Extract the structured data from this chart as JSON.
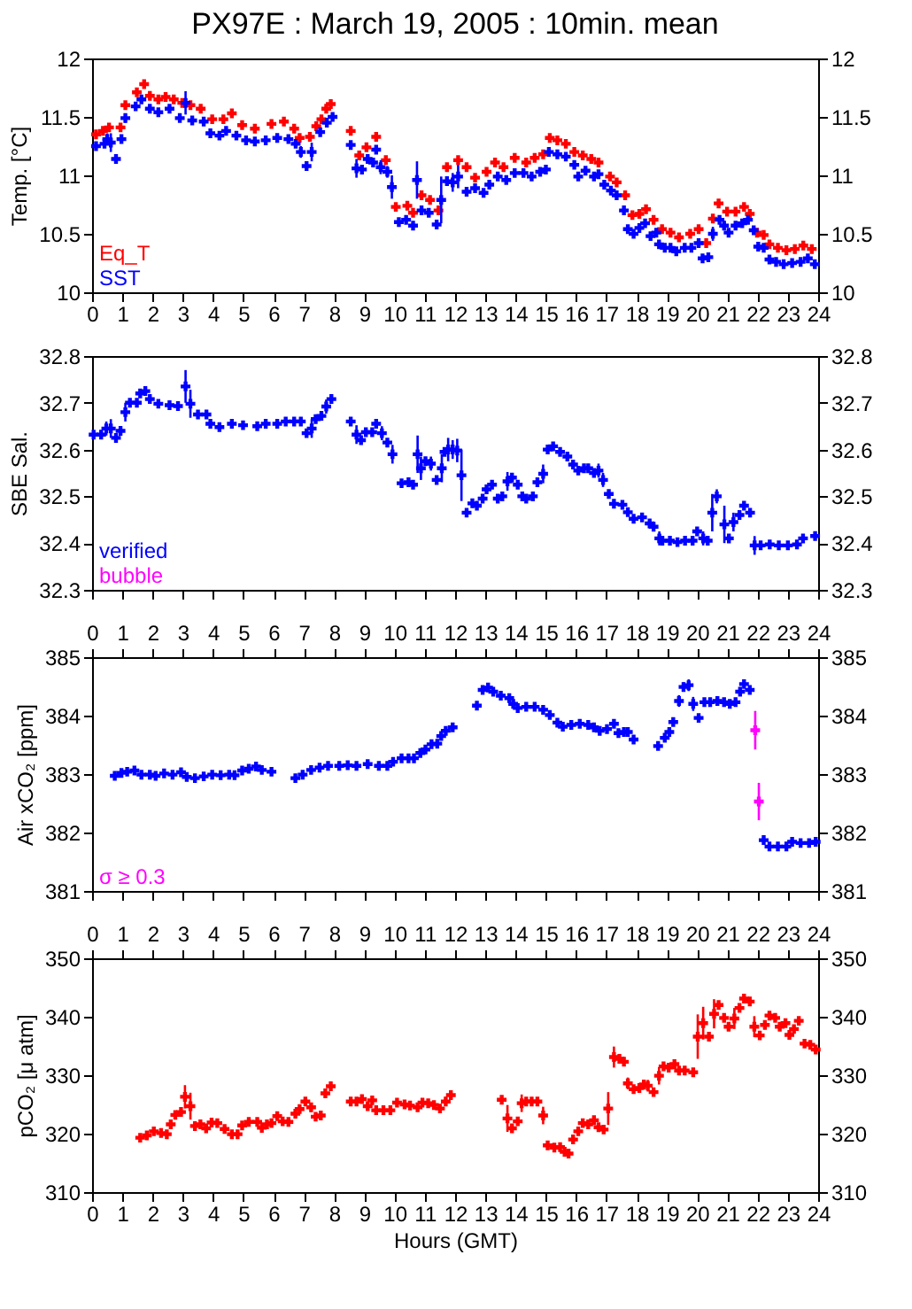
{
  "chart_data": [
    {
      "type": "scatter",
      "title": "PX97E : March 19, 2005 : 10min. mean",
      "ylabel": "Temp. [°C]",
      "marker": "cross",
      "legend": "bottom left",
      "xlim": [
        0,
        24
      ],
      "xticks": [
        0,
        1,
        2,
        3,
        4,
        5,
        6,
        7,
        8,
        9,
        10,
        11,
        12,
        13,
        14,
        15,
        16,
        17,
        18,
        19,
        20,
        21,
        22,
        23,
        24
      ],
      "ylim": [
        10,
        12
      ],
      "yticks": [
        10,
        10.5,
        11,
        11.5,
        12
      ],
      "y2lim": [
        10,
        12
      ],
      "y2ticks": [
        10,
        10.5,
        11,
        11.5,
        12
      ],
      "series": [
        {
          "name": "Eq_T",
          "color": "#ff0000",
          "x": [
            0.13,
            0.36,
            0.56,
            0.94,
            1.1,
            1.48,
            1.72,
            1.91,
            2.19,
            2.43,
            2.7,
            2.98,
            3.25,
            3.59,
            3.97,
            4.34,
            4.62,
            4.96,
            5.38,
            5.93,
            6.34,
            6.68,
            6.86,
            7.2,
            7.41,
            7.58,
            7.74,
            7.89,
            8.55,
            8.83,
            9.07,
            9.39,
            9.71,
            10.04,
            10.42,
            10.61,
            10.89,
            11.17,
            11.45,
            11.73,
            12.1,
            12.38,
            12.66,
            13.04,
            13.32,
            13.6,
            13.97,
            14.35,
            14.63,
            14.91,
            15.13,
            15.38,
            15.66,
            15.94,
            16.22,
            16.5,
            16.74,
            17.12,
            17.34,
            17.62,
            17.86,
            18.09,
            18.31,
            18.56,
            18.84,
            19.12,
            19.4,
            19.77,
            20.05,
            20.3,
            20.52,
            20.71,
            20.99,
            21.27,
            21.55,
            21.74,
            21.98,
            22.2,
            22.39,
            22.67,
            22.95,
            23.23,
            23.51,
            23.79
          ],
          "values": [
            11.35,
            11.38,
            11.41,
            11.41,
            11.6,
            11.71,
            11.78,
            11.68,
            11.65,
            11.67,
            11.65,
            11.62,
            11.6,
            11.57,
            11.48,
            11.48,
            11.53,
            11.43,
            11.4,
            11.44,
            11.46,
            11.4,
            11.32,
            11.33,
            11.42,
            11.48,
            11.57,
            11.61,
            11.38,
            11.17,
            11.24,
            11.33,
            11.13,
            10.73,
            10.74,
            10.68,
            10.83,
            10.79,
            10.7,
            11.07,
            11.13,
            11.07,
            10.98,
            11.03,
            11.11,
            11.07,
            11.15,
            11.11,
            11.15,
            11.18,
            11.32,
            11.3,
            11.27,
            11.2,
            11.17,
            11.14,
            11.11,
            10.99,
            10.94,
            10.83,
            10.66,
            10.67,
            10.71,
            10.62,
            10.54,
            10.51,
            10.47,
            10.5,
            10.54,
            10.42,
            10.63,
            10.76,
            10.69,
            10.69,
            10.73,
            10.67,
            10.51,
            10.49,
            10.41,
            10.38,
            10.36,
            10.37,
            10.4,
            10.37
          ]
        },
        {
          "name": "SST",
          "color": "#0000ff",
          "x": [
            0.13,
            0.41,
            0.5,
            0.62,
            0.79,
            0.97,
            1.1,
            1.44,
            1.63,
            1.91,
            2.19,
            2.56,
            2.9,
            3.09,
            3.31,
            3.69,
            3.91,
            4.21,
            4.43,
            4.77,
            5.09,
            5.38,
            5.74,
            6.12,
            6.49,
            6.73,
            6.9,
            7.09,
            7.26,
            7.54,
            7.76,
            7.95,
            8.55,
            8.74,
            8.92,
            9.11,
            9.29,
            9.39,
            9.54,
            9.76,
            9.91,
            10.14,
            10.38,
            10.61,
            10.74,
            10.89,
            11.13,
            11.39,
            11.54,
            11.73,
            11.92,
            12.1,
            12.38,
            12.66,
            12.94,
            13.13,
            13.41,
            13.69,
            13.97,
            14.26,
            14.53,
            14.81,
            15.0,
            15.1,
            15.38,
            15.66,
            15.94,
            16.07,
            16.31,
            16.59,
            16.74,
            16.93,
            17.15,
            17.34,
            17.58,
            17.71,
            17.9,
            18.09,
            18.28,
            18.46,
            18.65,
            18.74,
            18.93,
            19.12,
            19.31,
            19.59,
            19.81,
            20.05,
            20.18,
            20.37,
            20.52,
            20.74,
            20.89,
            21.04,
            21.27,
            21.49,
            21.68,
            21.87,
            22.02,
            22.2,
            22.39,
            22.61,
            22.86,
            23.14,
            23.42,
            23.66,
            23.89
          ],
          "values": [
            11.25,
            11.27,
            11.31,
            11.28,
            11.14,
            11.31,
            11.49,
            11.59,
            11.65,
            11.57,
            11.54,
            11.57,
            11.49,
            11.62,
            11.47,
            11.46,
            11.36,
            11.34,
            11.38,
            11.34,
            11.3,
            11.29,
            11.3,
            11.32,
            11.31,
            11.27,
            11.2,
            11.08,
            11.2,
            11.37,
            11.45,
            11.5,
            11.26,
            11.06,
            11.05,
            11.14,
            11.11,
            11.22,
            11.07,
            11.03,
            10.9,
            10.6,
            10.62,
            10.57,
            10.96,
            10.7,
            10.68,
            10.58,
            10.79,
            10.95,
            10.94,
            10.99,
            10.86,
            10.89,
            10.85,
            10.92,
            10.99,
            10.96,
            11.02,
            11.02,
            10.99,
            11.03,
            11.05,
            11.2,
            11.18,
            11.16,
            11.09,
            10.99,
            11.04,
            10.99,
            11.01,
            10.92,
            10.87,
            10.83,
            10.7,
            10.54,
            10.5,
            10.55,
            10.59,
            10.48,
            10.51,
            10.41,
            10.38,
            10.38,
            10.35,
            10.38,
            10.38,
            10.42,
            10.29,
            10.3,
            10.5,
            10.62,
            10.57,
            10.51,
            10.57,
            10.59,
            10.62,
            10.53,
            10.39,
            10.38,
            10.28,
            10.26,
            10.24,
            10.25,
            10.26,
            10.29,
            10.24
          ],
          "errors": [
            null,
            null,
            0.05,
            0.08,
            null,
            null,
            0.04,
            null,
            null,
            null,
            null,
            null,
            null,
            0.1,
            null,
            null,
            null,
            null,
            null,
            null,
            null,
            null,
            null,
            null,
            null,
            null,
            0.05,
            null,
            0.08,
            null,
            0.03,
            null,
            null,
            0.08,
            null,
            null,
            null,
            null,
            0.06,
            0.05,
            0.1,
            null,
            null,
            null,
            0.16,
            null,
            null,
            null,
            0.2,
            null,
            0.08,
            0.1,
            null,
            null,
            null,
            null,
            null,
            null,
            null,
            null,
            null,
            null,
            null,
            null,
            null,
            null,
            null,
            null,
            null,
            null,
            null,
            null,
            null,
            null,
            0.04,
            null,
            null,
            null,
            null,
            null,
            null,
            null,
            null,
            null,
            null,
            null,
            null,
            null,
            null,
            null,
            0.06,
            null,
            0.04,
            null,
            null,
            null,
            null,
            null,
            null,
            null,
            null,
            null,
            null,
            null,
            null,
            null,
            0.03
          ]
        }
      ]
    },
    {
      "type": "scatter",
      "ylabel": "SBE Sal.",
      "marker": "cross",
      "legend": "bottom left",
      "tick_labels": "y",
      "xlim": [
        0,
        24
      ],
      "xticks": [
        0,
        1,
        2,
        3,
        4,
        5,
        6,
        7,
        8,
        9,
        10,
        11,
        12,
        13,
        14,
        15,
        16,
        17,
        18,
        19,
        20,
        21,
        22,
        23,
        24
      ],
      "ylim": [
        32.3,
        32.8
      ],
      "yticks": [
        32.3,
        32.4,
        32.5,
        32.6,
        32.7,
        32.8
      ],
      "y2lim": [
        32.3,
        32.8
      ],
      "y2ticks": [
        32.3,
        32.4,
        32.5,
        32.6,
        32.7,
        32.8
      ],
      "series": [
        {
          "name": "verified",
          "color": "#0000ff",
          "x": [
            0.05,
            0.3,
            0.47,
            0.62,
            0.79,
            0.94,
            1.1,
            1.25,
            1.48,
            1.59,
            1.76,
            1.91,
            2.19,
            2.56,
            2.84,
            3.09,
            3.25,
            3.5,
            3.78,
            3.91,
            4.21,
            4.62,
            4.99,
            5.46,
            5.74,
            6.12,
            6.4,
            6.68,
            6.9,
            7.09,
            7.26,
            7.39,
            7.58,
            7.74,
            7.91,
            8.55,
            8.74,
            8.89,
            9.05,
            9.26,
            9.39,
            9.58,
            9.76,
            9.93,
            10.23,
            10.46,
            10.61,
            10.76,
            10.87,
            11.02,
            11.2,
            11.39,
            11.56,
            11.65,
            11.77,
            11.92,
            12.07,
            12.21,
            12.38,
            12.57,
            12.72,
            12.91,
            13.04,
            13.22,
            13.41,
            13.56,
            13.73,
            13.88,
            14.07,
            14.22,
            14.35,
            14.57,
            14.72,
            14.91,
            15.06,
            15.24,
            15.47,
            15.71,
            15.9,
            16.07,
            16.26,
            16.4,
            16.59,
            16.74,
            16.89,
            17.08,
            17.25,
            17.53,
            17.71,
            17.9,
            18.18,
            18.43,
            18.56,
            18.75,
            18.85,
            19.1,
            19.35,
            19.6,
            19.85,
            20.0,
            20.2,
            20.35,
            20.5,
            20.65,
            20.9,
            21.05,
            21.2,
            21.4,
            21.55,
            21.75,
            21.9,
            22.1,
            22.4,
            22.7,
            23.0,
            23.3,
            23.5,
            23.9
          ],
          "values": [
            32.632,
            32.632,
            32.645,
            32.645,
            32.625,
            32.64,
            32.68,
            32.7,
            32.7,
            32.72,
            32.725,
            32.708,
            32.698,
            32.695,
            32.693,
            32.735,
            32.698,
            32.675,
            32.675,
            32.655,
            32.648,
            32.655,
            32.652,
            32.65,
            32.655,
            32.655,
            32.66,
            32.66,
            32.66,
            32.635,
            32.645,
            32.665,
            32.672,
            32.692,
            32.708,
            32.66,
            32.632,
            32.62,
            32.637,
            32.637,
            32.655,
            32.635,
            32.615,
            32.59,
            32.528,
            32.53,
            32.525,
            32.59,
            32.56,
            32.575,
            32.57,
            32.535,
            32.56,
            32.595,
            32.6,
            32.6,
            32.598,
            32.545,
            32.465,
            32.485,
            32.48,
            32.495,
            32.515,
            32.525,
            32.495,
            32.5,
            32.532,
            32.54,
            32.525,
            32.5,
            32.495,
            32.5,
            32.53,
            32.548,
            32.6,
            32.607,
            32.595,
            32.585,
            32.568,
            32.555,
            32.56,
            32.56,
            32.55,
            32.555,
            32.535,
            32.505,
            32.484,
            32.482,
            32.466,
            32.452,
            32.455,
            32.442,
            32.435,
            32.41,
            32.405,
            32.405,
            32.402,
            32.405,
            32.405,
            32.425,
            32.41,
            32.405,
            32.465,
            32.5,
            32.44,
            32.41,
            32.445,
            32.46,
            32.48,
            32.465,
            32.395,
            32.395,
            32.397,
            32.395,
            32.395,
            32.397,
            32.41,
            32.415
          ],
          "errors": [
            null,
            null,
            0.015,
            0.02,
            null,
            null,
            0.02,
            null,
            null,
            null,
            null,
            null,
            null,
            null,
            null,
            0.035,
            0.03,
            null,
            null,
            null,
            null,
            null,
            null,
            null,
            null,
            null,
            null,
            null,
            null,
            null,
            0.02,
            null,
            null,
            0.015,
            null,
            null,
            0.02,
            null,
            null,
            null,
            null,
            0.015,
            null,
            0.02,
            null,
            null,
            null,
            0.04,
            0.025,
            null,
            0.015,
            null,
            0.03,
            null,
            0.025,
            0.02,
            0.025,
            0.055,
            null,
            null,
            null,
            null,
            null,
            null,
            null,
            null,
            0.02,
            null,
            null,
            null,
            null,
            null,
            null,
            0.02,
            null,
            null,
            null,
            null,
            null,
            null,
            null,
            null,
            null,
            0.015,
            0.015,
            null,
            null,
            null,
            null,
            null,
            null,
            null,
            null,
            0.015,
            null,
            null,
            null,
            null,
            null,
            null,
            0.015,
            null,
            0.04,
            0.015,
            0.04,
            null,
            0.02,
            null,
            null,
            null,
            0.02,
            null,
            null,
            null,
            null,
            null,
            null,
            null
          ]
        },
        {
          "name": "bubble",
          "color": "#ff00ff"
        }
      ]
    },
    {
      "type": "scatter",
      "ylabel": "Air xCO₂ [ppm]",
      "marker": "cross",
      "legend": "bottom left",
      "xlim": [
        0,
        24
      ],
      "x2lim": [
        0,
        24
      ],
      "x2ticks": [
        0,
        1,
        2,
        3,
        4,
        5,
        6,
        7,
        8,
        9,
        10,
        11,
        12,
        13,
        14,
        15,
        16,
        17,
        18,
        19,
        20,
        21,
        22,
        23,
        24
      ],
      "ylim": [
        381,
        385
      ],
      "yticks": [
        381,
        382,
        383,
        384,
        385
      ],
      "y2lim": [
        381,
        385
      ],
      "y2ticks": [
        381,
        382,
        383,
        384,
        385
      ],
      "series": [
        {
          "color": "#0000ff",
          "x": [
            0.75,
            0.97,
            1.16,
            1.4,
            1.63,
            1.91,
            2.1,
            2.38,
            2.66,
            2.94,
            3.13,
            3.4,
            3.69,
            3.97,
            4.25,
            4.53,
            4.71,
            4.96,
            5.18,
            5.42,
            5.61,
            5.93,
            6.72,
            6.96,
            7.24,
            7.52,
            7.8,
            8.17,
            8.45,
            8.74,
            9.11,
            9.48,
            9.76,
            9.95,
            10.23,
            10.46,
            10.64,
            10.85,
            11.02,
            11.22,
            11.41,
            11.54,
            11.69,
            11.92,
            12.72,
            12.91,
            13.09,
            13.26,
            13.51,
            13.79,
            13.92,
            14.07,
            14.35,
            14.63,
            14.91,
            15.13,
            15.38,
            15.56,
            15.84,
            16.12,
            16.4,
            16.59,
            16.78,
            17.02,
            17.25,
            17.4,
            17.58,
            17.71,
            17.9,
            18.71,
            18.93,
            19.08,
            19.21,
            19.4,
            19.55,
            19.72,
            19.87,
            20.05,
            20.24,
            20.43,
            20.67,
            20.89,
            21.08,
            21.27,
            21.42,
            21.55,
            21.74,
            22.2,
            22.39,
            22.67,
            22.95,
            23.14,
            23.42,
            23.7,
            23.92
          ],
          "values": [
            382.97,
            383.02,
            383.04,
            383.06,
            382.99,
            382.99,
            382.97,
            383.01,
            382.99,
            383.03,
            382.95,
            382.93,
            382.96,
            382.99,
            382.98,
            382.99,
            382.98,
            383.06,
            383.09,
            383.13,
            383.07,
            383.04,
            382.93,
            382.99,
            383.07,
            383.11,
            383.14,
            383.14,
            383.15,
            383.14,
            383.17,
            383.14,
            383.14,
            383.21,
            383.27,
            383.27,
            383.27,
            383.36,
            383.42,
            383.51,
            383.52,
            383.65,
            383.74,
            383.8,
            384.17,
            384.44,
            384.48,
            384.41,
            384.34,
            384.3,
            384.2,
            384.13,
            384.15,
            384.15,
            384.1,
            384.01,
            383.88,
            383.81,
            383.84,
            383.86,
            383.84,
            383.8,
            383.74,
            383.77,
            383.86,
            383.7,
            383.72,
            383.72,
            383.59,
            383.48,
            383.62,
            383.72,
            383.89,
            384.25,
            384.49,
            384.52,
            384.2,
            383.96,
            384.23,
            384.23,
            384.25,
            384.23,
            384.2,
            384.23,
            384.41,
            384.54,
            384.44,
            381.87,
            381.76,
            381.76,
            381.76,
            381.84,
            381.82,
            381.82,
            381.84
          ],
          "errors": [
            null,
            null,
            null,
            null,
            null,
            null,
            null,
            null,
            null,
            null,
            null,
            null,
            null,
            null,
            null,
            null,
            null,
            null,
            null,
            null,
            null,
            0.07,
            null,
            null,
            null,
            null,
            null,
            null,
            null,
            null,
            null,
            null,
            null,
            null,
            null,
            null,
            null,
            null,
            null,
            null,
            null,
            null,
            null,
            null,
            0.05,
            null,
            null,
            null,
            null,
            null,
            null,
            null,
            null,
            null,
            null,
            null,
            null,
            null,
            null,
            null,
            null,
            null,
            null,
            null,
            null,
            0.05,
            null,
            0.04,
            null,
            null,
            null,
            null,
            0.05,
            0.1,
            0.08,
            0.1,
            0.12,
            0.06,
            0.05,
            null,
            null,
            null,
            null,
            null,
            null,
            null,
            null,
            null,
            null,
            null,
            null,
            null,
            null,
            null,
            null
          ]
        },
        {
          "name": "σ ≥ 0.3",
          "color": "#ff00ff",
          "x": [
            21.92,
            22.04
          ],
          "values": [
            383.75,
            382.53
          ],
          "errors": [
            0.33,
            0.32
          ]
        }
      ]
    },
    {
      "type": "scatter",
      "ylabel": "pCO₂ [μ atm]",
      "xlabel": "Hours (GMT)",
      "marker": "cross",
      "xlim": [
        0,
        24
      ],
      "xticks": [
        0,
        1,
        2,
        3,
        4,
        5,
        6,
        7,
        8,
        9,
        10,
        11,
        12,
        13,
        14,
        15,
        16,
        17,
        18,
        19,
        20,
        21,
        22,
        23,
        24
      ],
      "x2lim": [
        0,
        24
      ],
      "x2ticks": [
        0,
        1,
        2,
        3,
        4,
        5,
        6,
        7,
        8,
        9,
        10,
        11,
        12,
        13,
        14,
        15,
        16,
        17,
        18,
        19,
        20,
        21,
        22,
        23,
        24
      ],
      "ylim": [
        310,
        350
      ],
      "yticks": [
        310,
        320,
        330,
        340,
        350
      ],
      "y2lim": [
        310,
        350
      ],
      "y2ticks": [
        310,
        320,
        330,
        340,
        350
      ],
      "series": [
        {
          "color": "#ff0000",
          "x": [
            1.59,
            1.81,
            2.04,
            2.28,
            2.47,
            2.6,
            2.75,
            2.94,
            3.07,
            3.25,
            3.4,
            3.58,
            3.77,
            3.95,
            4.14,
            4.38,
            4.62,
            4.81,
            4.96,
            5.18,
            5.46,
            5.61,
            5.78,
            5.93,
            6.12,
            6.3,
            6.49,
            6.72,
            6.86,
            7.05,
            7.24,
            7.39,
            7.56,
            7.71,
            7.89,
            8.55,
            8.74,
            8.92,
            9.11,
            9.26,
            9.39,
            9.63,
            9.86,
            10.08,
            10.33,
            10.51,
            10.76,
            10.92,
            11.11,
            11.3,
            11.5,
            11.69,
            11.86,
            13.54,
            13.73,
            13.88,
            14.07,
            14.2,
            14.35,
            14.53,
            14.72,
            14.91,
            15.06,
            15.28,
            15.47,
            15.62,
            15.75,
            15.9,
            16.07,
            16.22,
            16.4,
            16.59,
            16.74,
            16.91,
            17.06,
            17.25,
            17.43,
            17.58,
            17.71,
            17.9,
            18.09,
            18.24,
            18.37,
            18.56,
            18.74,
            18.89,
            19.06,
            19.25,
            19.4,
            19.59,
            19.87,
            20.02,
            20.2,
            20.39,
            20.56,
            20.71,
            20.89,
            21.04,
            21.23,
            21.4,
            21.55,
            21.74,
            21.89,
            22.07,
            22.24,
            22.39,
            22.58,
            22.73,
            22.92,
            23.05,
            23.2,
            23.36,
            23.55,
            23.74,
            23.92
          ],
          "values": [
            319.3,
            319.7,
            320.4,
            320.1,
            319.9,
            321.6,
            323.2,
            323.7,
            326.3,
            324.7,
            321.3,
            321.6,
            320.9,
            321.9,
            321.8,
            320.8,
            319.9,
            319.9,
            321.4,
            322.0,
            322.0,
            321.0,
            321.6,
            321.8,
            323.0,
            322.1,
            322.0,
            323.4,
            324.2,
            325.5,
            324.5,
            322.9,
            323.1,
            326.9,
            328.1,
            325.5,
            325.5,
            325.9,
            324.7,
            325.7,
            324.0,
            324.0,
            324.0,
            325.3,
            325.0,
            324.8,
            324.5,
            325.3,
            325.2,
            324.9,
            324.3,
            325.5,
            326.6,
            325.8,
            322.6,
            320.9,
            322.1,
            325.2,
            325.5,
            325.5,
            325.5,
            323.1,
            318.0,
            317.6,
            317.7,
            316.9,
            316.6,
            319.0,
            320.4,
            321.8,
            321.6,
            322.3,
            321.1,
            320.7,
            324.3,
            333.1,
            332.8,
            332.3,
            328.6,
            327.6,
            327.8,
            328.4,
            328.2,
            327.1,
            329.9,
            331.5,
            331.3,
            331.9,
            330.8,
            330.8,
            330.5,
            336.6,
            338.9,
            336.6,
            340.5,
            342.0,
            339.8,
            338.3,
            339.7,
            341.5,
            343.1,
            342.6,
            338.3,
            336.8,
            338.6,
            340.2,
            339.8,
            338.3,
            338.9,
            336.9,
            337.9,
            339.3,
            335.4,
            335.2,
            334.4
          ],
          "errors": [
            null,
            null,
            null,
            null,
            null,
            0.8,
            null,
            null,
            2,
            2.3,
            null,
            null,
            null,
            null,
            null,
            null,
            null,
            null,
            null,
            null,
            null,
            null,
            null,
            null,
            null,
            null,
            null,
            0.8,
            null,
            null,
            0.8,
            null,
            null,
            null,
            null,
            null,
            null,
            null,
            null,
            null,
            null,
            null,
            null,
            null,
            null,
            null,
            null,
            null,
            null,
            null,
            null,
            0.8,
            null,
            null,
            2.3,
            null,
            null,
            1.5,
            null,
            null,
            null,
            1.5,
            0.7,
            null,
            null,
            null,
            null,
            null,
            null,
            0.6,
            null,
            null,
            null,
            null,
            2.8,
            1.8,
            null,
            null,
            1,
            null,
            null,
            0.8,
            1,
            null,
            1.5,
            null,
            null,
            null,
            null,
            null,
            null,
            3.8,
            2.8,
            null,
            2.5,
            null,
            null,
            null,
            1.8,
            null,
            null,
            null,
            1.8,
            null,
            null,
            null,
            null,
            null,
            null,
            null,
            null,
            null,
            null,
            null,
            null
          ]
        }
      ]
    }
  ]
}
